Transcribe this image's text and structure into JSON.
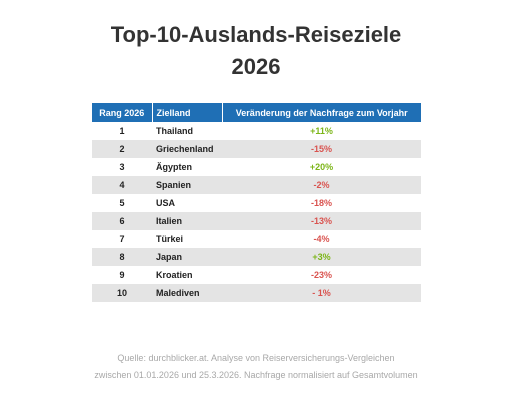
{
  "title": {
    "line1": "Top-10-Auslands-Reiseziele",
    "line2": "2026"
  },
  "table": {
    "headers": [
      "Rang 2026",
      "Zielland",
      "Veränderung der Nachfrage zum Vorjahr"
    ],
    "rows": [
      {
        "rank": "1",
        "country": "Thailand",
        "change": "+11%",
        "trend": "positive"
      },
      {
        "rank": "2",
        "country": "Griechenland",
        "change": "-15%",
        "trend": "negative"
      },
      {
        "rank": "3",
        "country": "Ägypten",
        "change": "+20%",
        "trend": "positive"
      },
      {
        "rank": "4",
        "country": "Spanien",
        "change": "-2%",
        "trend": "negative"
      },
      {
        "rank": "5",
        "country": "USA",
        "change": "-18%",
        "trend": "negative"
      },
      {
        "rank": "6",
        "country": "Italien",
        "change": "-13%",
        "trend": "negative"
      },
      {
        "rank": "7",
        "country": "Türkei",
        "change": "-4%",
        "trend": "negative"
      },
      {
        "rank": "8",
        "country": "Japan",
        "change": "+3%",
        "trend": "positive"
      },
      {
        "rank": "9",
        "country": "Kroatien",
        "change": "-23%",
        "trend": "negative"
      },
      {
        "rank": "10",
        "country": "Malediven",
        "change": "- 1%",
        "trend": "negative"
      }
    ]
  },
  "colors": {
    "header_bg": "#1f6fb5",
    "positive": "#7cb518",
    "negative": "#d9534f",
    "stripe": "#e4e4e4"
  },
  "source": {
    "line1": "Quelle: durchblicker.at. Analyse von Reiserversicherungs-Vergleichen",
    "line2": "zwischen 01.01.2026 und 25.3.2026. Nachfrage normalisiert auf Gesamtvolumen"
  }
}
